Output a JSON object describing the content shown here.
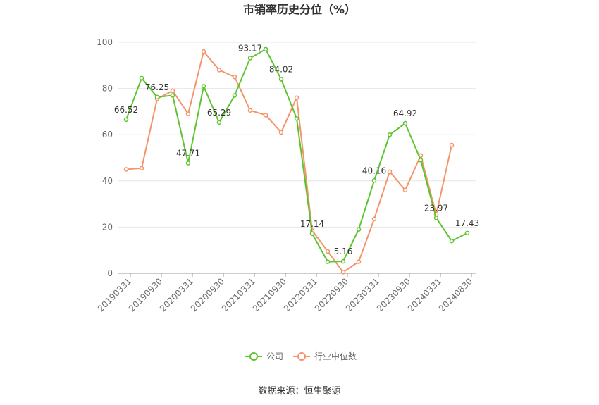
{
  "chart_data": {
    "type": "line",
    "title": "市销率历史分位（%）",
    "categories": [
      "20190331",
      null,
      "20190930",
      null,
      "20200331",
      null,
      "20200930",
      null,
      "20210331",
      null,
      "20210930",
      null,
      "20220331",
      null,
      "20220930",
      null,
      "20230331",
      null,
      "20230930",
      null,
      "20240331",
      null,
      "20240830"
    ],
    "series": [
      {
        "name": "公司",
        "color": "#5cc42f",
        "values": [
          66.52,
          84.5,
          76.25,
          77,
          47.71,
          81,
          65.29,
          77,
          93.17,
          97,
          84.02,
          67,
          17.14,
          5,
          5.16,
          19,
          40.16,
          60,
          64.92,
          49,
          23.97,
          14,
          17.43
        ],
        "value_labels": [
          "66.52",
          null,
          "76.25",
          null,
          "47.71",
          null,
          "65.29",
          null,
          "93.17",
          null,
          "84.02",
          null,
          "17.14",
          null,
          "5.16",
          null,
          "40.16",
          null,
          "64.92",
          null,
          "23.97",
          null,
          "17.43"
        ]
      },
      {
        "name": "行业中位数",
        "color": "#f4946a",
        "values": [
          45,
          45.5,
          75.5,
          79,
          69,
          96,
          88,
          85,
          70.5,
          68.5,
          61,
          76,
          18.5,
          9.5,
          0.5,
          5,
          23.5,
          44,
          36,
          51,
          25.5,
          55.5,
          null
        ]
      }
    ],
    "ylim": [
      0,
      100
    ],
    "yticks": [
      0,
      20,
      40,
      60,
      80,
      100
    ],
    "grid": true,
    "legend": "bottom",
    "source": "数据来源：恒生聚源"
  }
}
